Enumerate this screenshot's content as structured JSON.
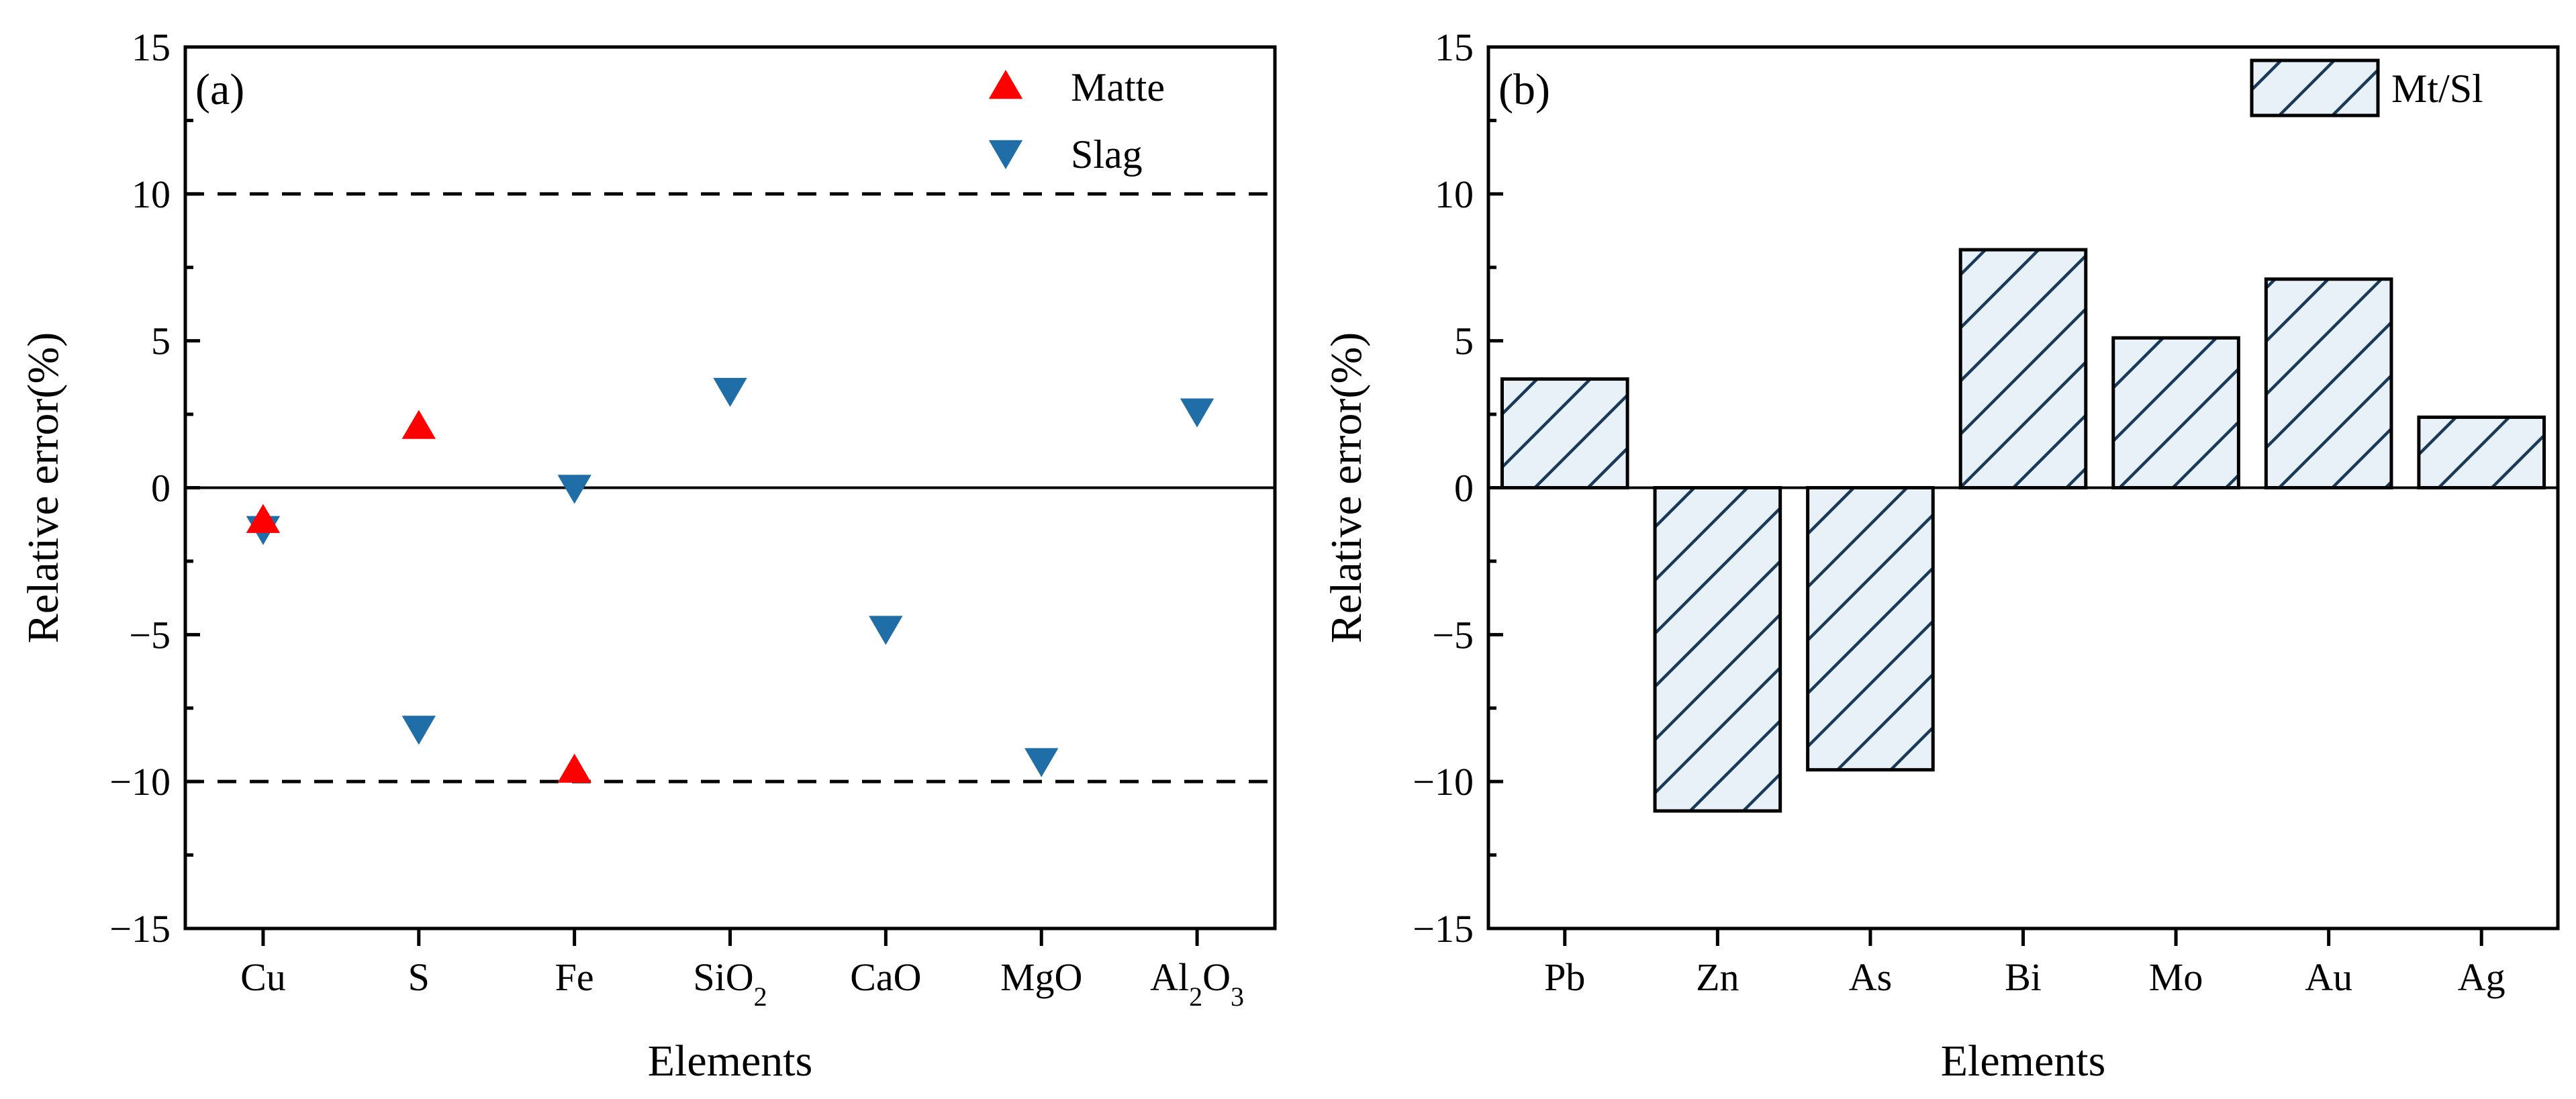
{
  "chart_data": [
    {
      "panel": "(a)",
      "type": "scatter",
      "xlabel": "Elements",
      "ylabel": "Relative error(%)",
      "ylim": [
        -15,
        15
      ],
      "yticks": [
        "−15",
        "−10",
        "−5",
        "0",
        "5",
        "10",
        "15"
      ],
      "categories": [
        {
          "base": "Cu"
        },
        {
          "base": "S"
        },
        {
          "base": "Fe"
        },
        {
          "base": "SiO",
          "sub": "2"
        },
        {
          "base": "CaO"
        },
        {
          "base": "MgO"
        },
        {
          "base": "Al",
          "sub": "2",
          "base2": "O",
          "sub2": "3"
        }
      ],
      "reference_lines": [
        10,
        -10
      ],
      "legend_position": "top-right",
      "series": [
        {
          "name": "Matte",
          "marker": "triangle-up",
          "color": "#ff0000",
          "values": [
            -1.1,
            2.1,
            -9.6,
            null,
            null,
            null,
            null
          ]
        },
        {
          "name": "Slag",
          "marker": "triangle-down",
          "color": "#1f6ea8",
          "values": [
            -1.4,
            -8.2,
            0.0,
            3.3,
            -4.8,
            -9.3,
            2.6
          ]
        }
      ]
    },
    {
      "panel": "(b)",
      "type": "bar",
      "xlabel": "Elements",
      "ylabel": "Relative error(%)",
      "ylim": [
        -15,
        15
      ],
      "yticks": [
        "−15",
        "−10",
        "−5",
        "0",
        "5",
        "10",
        "15"
      ],
      "categories": [
        "Pb",
        "Zn",
        "As",
        "Bi",
        "Mo",
        "Au",
        "Ag"
      ],
      "legend_position": "top-right",
      "series": [
        {
          "name": "Mt/Sl",
          "pattern": "diagonal-hatch",
          "color": "#1a3a5a",
          "values": [
            3.7,
            -11.0,
            -9.6,
            8.1,
            5.1,
            7.1,
            2.4
          ]
        }
      ]
    }
  ]
}
